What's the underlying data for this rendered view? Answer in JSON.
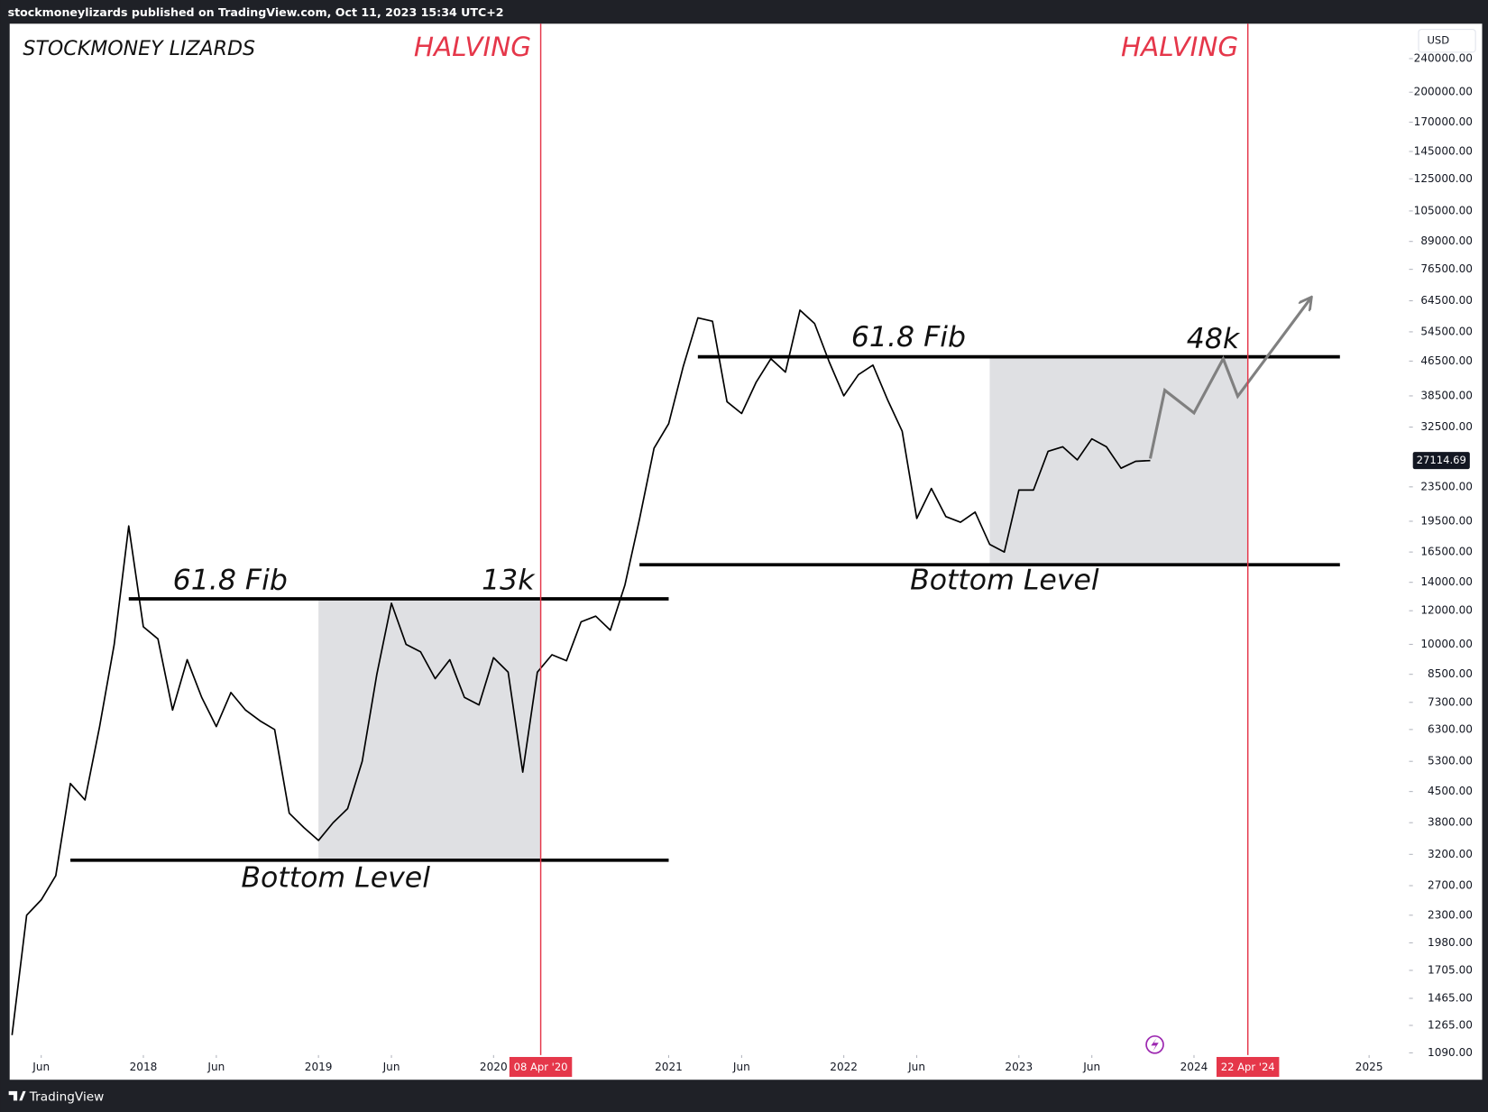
{
  "header": "stockmoneylizards published on TradingView.com, Oct 11, 2023 15:34 UTC+2",
  "footer": "TradingView",
  "chart_data": {
    "type": "line",
    "title": "STOCKMONEY LIZARDS",
    "currency": "USD",
    "log_scale": true,
    "color": "#000000",
    "x": [
      "2017-04",
      "2017-05",
      "2017-06",
      "2017-07",
      "2017-08",
      "2017-09",
      "2017-10",
      "2017-11",
      "2017-12",
      "2018-01",
      "2018-02",
      "2018-03",
      "2018-04",
      "2018-05",
      "2018-06",
      "2018-07",
      "2018-08",
      "2018-09",
      "2018-10",
      "2018-11",
      "2018-12",
      "2019-01",
      "2019-02",
      "2019-03",
      "2019-04",
      "2019-05",
      "2019-06",
      "2019-07",
      "2019-08",
      "2019-09",
      "2019-10",
      "2019-11",
      "2019-12",
      "2020-01",
      "2020-02",
      "2020-03",
      "2020-04",
      "2020-05",
      "2020-06",
      "2020-07",
      "2020-08",
      "2020-09",
      "2020-10",
      "2020-11",
      "2020-12",
      "2021-01",
      "2021-02",
      "2021-03",
      "2021-04",
      "2021-05",
      "2021-06",
      "2021-07",
      "2021-08",
      "2021-09",
      "2021-10",
      "2021-11",
      "2021-12",
      "2022-01",
      "2022-02",
      "2022-03",
      "2022-04",
      "2022-05",
      "2022-06",
      "2022-07",
      "2022-08",
      "2022-09",
      "2022-10",
      "2022-11",
      "2022-12",
      "2023-01",
      "2023-02",
      "2023-03",
      "2023-04",
      "2023-05",
      "2023-06",
      "2023-07",
      "2023-08",
      "2023-09",
      "2023-10"
    ],
    "values": [
      1200,
      2300,
      2500,
      2850,
      4700,
      4300,
      6400,
      10000,
      19000,
      11000,
      10300,
      7000,
      9200,
      7500,
      6400,
      7700,
      7000,
      6600,
      6300,
      4000,
      3700,
      3450,
      3800,
      4100,
      5300,
      8500,
      12500,
      10000,
      9600,
      8300,
      9200,
      7500,
      7200,
      9300,
      8600,
      5000,
      8600,
      9450,
      9150,
      11300,
      11650,
      10800,
      13800,
      19700,
      29000,
      33100,
      45200,
      58800,
      57700,
      37300,
      35000,
      41500,
      47100,
      43800,
      61300,
      57000,
      46300,
      38500,
      43200,
      45500,
      37700,
      31800,
      19800,
      23300,
      20000,
      19400,
      20500,
      17200,
      16500,
      23100,
      23100,
      28500,
      29200,
      27200,
      30500,
      29200,
      26000,
      27000,
      27100
    ],
    "xlim": [
      "2017-04",
      "2025-04"
    ],
    "ylim": [
      942,
      290000
    ],
    "xticks": [
      {
        "value": "2017-06",
        "label": "Jun"
      },
      {
        "value": "2018-01",
        "label": "2018"
      },
      {
        "value": "2018-06",
        "label": "Jun"
      },
      {
        "value": "2019-01",
        "label": "2019"
      },
      {
        "value": "2019-06",
        "label": "Jun"
      },
      {
        "value": "2020-01",
        "label": "2020"
      },
      {
        "value": "2021-01",
        "label": "2021"
      },
      {
        "value": "2021-06",
        "label": "Jun"
      },
      {
        "value": "2022-01",
        "label": "2022"
      },
      {
        "value": "2022-06",
        "label": "Jun"
      },
      {
        "value": "2023-01",
        "label": "2023"
      },
      {
        "value": "2023-06",
        "label": "Jun"
      },
      {
        "value": "2024-01",
        "label": "2024"
      },
      {
        "value": "2025-01",
        "label": "2025"
      }
    ],
    "yticks": [
      {
        "value": 240000,
        "label": "240000.00"
      },
      {
        "value": 200000,
        "label": "200000.00"
      },
      {
        "value": 170000,
        "label": "170000.00"
      },
      {
        "value": 145000,
        "label": "145000.00"
      },
      {
        "value": 125000,
        "label": "125000.00"
      },
      {
        "value": 105000,
        "label": "105000.00"
      },
      {
        "value": 89000,
        "label": "89000.00"
      },
      {
        "value": 76500,
        "label": "76500.00"
      },
      {
        "value": 64500,
        "label": "64500.00"
      },
      {
        "value": 54500,
        "label": "54500.00"
      },
      {
        "value": 46500,
        "label": "46500.00"
      },
      {
        "value": 38500,
        "label": "38500.00"
      },
      {
        "value": 32500,
        "label": "32500.00"
      },
      {
        "value": 23500,
        "label": "23500.00"
      },
      {
        "value": 19500,
        "label": "19500.00"
      },
      {
        "value": 16500,
        "label": "16500.00"
      },
      {
        "value": 14000,
        "label": "14000.00"
      },
      {
        "value": 12000,
        "label": "12000.00"
      },
      {
        "value": 10000,
        "label": "10000.00"
      },
      {
        "value": 8500,
        "label": "8500.00"
      },
      {
        "value": 7300,
        "label": "7300.00"
      },
      {
        "value": 6300,
        "label": "6300.00"
      },
      {
        "value": 5300,
        "label": "5300.00"
      },
      {
        "value": 4500,
        "label": "4500.00"
      },
      {
        "value": 3800,
        "label": "3800.00"
      },
      {
        "value": 3200,
        "label": "3200.00"
      },
      {
        "value": 2700,
        "label": "2700.00"
      },
      {
        "value": 2300,
        "label": "2300.00"
      },
      {
        "value": 1980,
        "label": "1980.00"
      },
      {
        "value": 1705,
        "label": "1705.00"
      },
      {
        "value": 1465,
        "label": "1465.00"
      },
      {
        "value": 1265,
        "label": "1265.00"
      },
      {
        "value": 1090,
        "label": "1090.00"
      }
    ],
    "last_price": 27114.69,
    "halvings": [
      {
        "title": "HALVING",
        "date": "2020-04-08",
        "label": "08 Apr '20"
      },
      {
        "title": "HALVING",
        "date": "2024-04-22",
        "label": "22 Apr '24"
      }
    ],
    "cycles": [
      {
        "fib": {
          "label": "61.8 Fib",
          "value": 12800,
          "value_label": "13k",
          "start": "2017-12",
          "end": "2021-01"
        },
        "bottom": {
          "label": "Bottom Level",
          "value": 3100,
          "start": "2017-08",
          "end": "2021-01"
        },
        "zone": {
          "start": "2019-01",
          "end": "2020-04-08"
        }
      },
      {
        "fib": {
          "label": "61.8 Fib",
          "value": 47600,
          "value_label": "48k",
          "start": "2021-03",
          "end": "2024-11"
        },
        "bottom": {
          "label": "Bottom Level",
          "value": 15400,
          "start": "2020-11",
          "end": "2024-11"
        },
        "zone": {
          "start": "2022-11",
          "end": "2024-04-22"
        }
      }
    ],
    "projection": {
      "color": "#808080",
      "x": [
        "2023-10",
        "2023-11",
        "2024-01",
        "2024-03",
        "2024-04",
        "2024-09"
      ],
      "values": [
        27400,
        39700,
        35100,
        47100,
        38400,
        65400
      ]
    }
  }
}
